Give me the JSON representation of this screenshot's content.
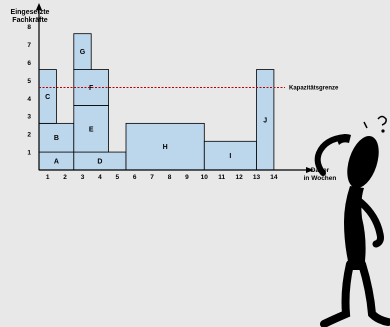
{
  "chart_data": {
    "type": "bar",
    "ylabel_lines": [
      "Eingesetzte",
      "Fachkräfte"
    ],
    "xlabel_lines": [
      "Dauer",
      "in Wochen"
    ],
    "capacity_label": "Kapazitätsgrenze",
    "capacity_value": 4.6,
    "x_ticks": [
      "1",
      "2",
      "3",
      "4",
      "5",
      "6",
      "7",
      "8",
      "9",
      "10",
      "11",
      "12",
      "13",
      "14"
    ],
    "y_ticks": [
      "1",
      "2",
      "3",
      "4",
      "5",
      "6",
      "7",
      "8"
    ],
    "xlim": [
      0.5,
      15.5
    ],
    "ylim": [
      0,
      9.2
    ],
    "blocks": [
      {
        "label": "A",
        "x0": 1,
        "x1": 3,
        "y0": 0,
        "y1": 1
      },
      {
        "label": "B",
        "x0": 1,
        "x1": 3,
        "y0": 1,
        "y1": 2.6
      },
      {
        "label": "C",
        "x0": 1,
        "x1": 2,
        "y0": 2.6,
        "y1": 5.6
      },
      {
        "label": "D",
        "x0": 3,
        "x1": 6,
        "y0": 0,
        "y1": 1
      },
      {
        "label": "E",
        "x0": 3,
        "x1": 5,
        "y0": 1,
        "y1": 3.6
      },
      {
        "label": "F",
        "x0": 3,
        "x1": 5,
        "y0": 3.6,
        "y1": 5.6
      },
      {
        "label": "G",
        "x0": 3,
        "x1": 4,
        "y0": 5.6,
        "y1": 7.6
      },
      {
        "label": "H",
        "x0": 6,
        "x1": 10.5,
        "y0": 0,
        "y1": 2.6
      },
      {
        "label": "I",
        "x0": 10.5,
        "x1": 13.5,
        "y0": 0,
        "y1": 1.6
      },
      {
        "label": "J",
        "x0": 13.5,
        "x1": 14.5,
        "y0": 0,
        "y1": 5.6
      }
    ],
    "colors": {
      "fill": "#bcd6ec",
      "edge": "#000000",
      "capacity": "#c00000"
    }
  }
}
